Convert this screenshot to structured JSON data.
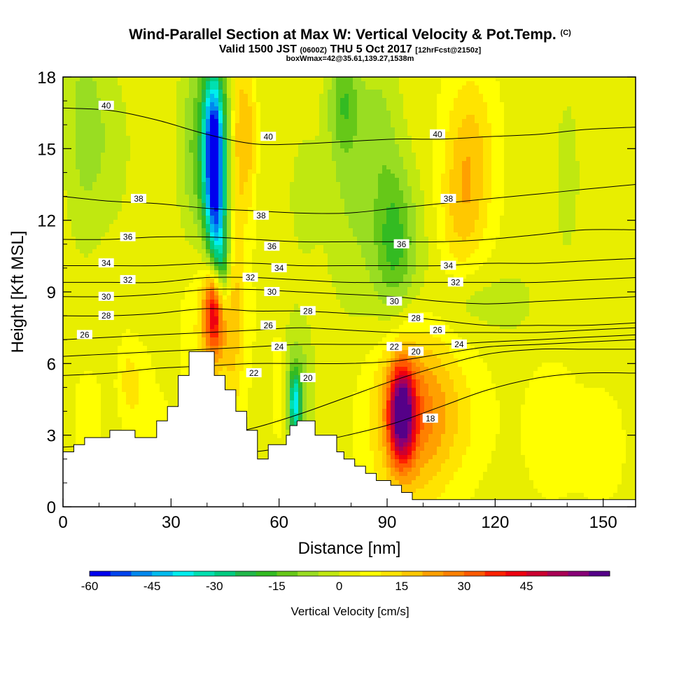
{
  "header": {
    "title_main": "Wind-Parallel Section at Max W: Vertical Velocity & Pot.Temp.",
    "title_mark": "(C)",
    "subtitle_a": "Valid 1500 JST",
    "subtitle_b": "(0600Z)",
    "subtitle_c": "THU 5 Oct 2017",
    "subtitle_d": "[12hrFcst@2150z]",
    "boxline": "boxWmax=42@35.61,139.27,1538m"
  },
  "chart_data": {
    "type": "heatmap",
    "xlabel": "Distance [nm]",
    "ylabel": "Height [Kft MSL]",
    "xlim": [
      0,
      159
    ],
    "ylim": [
      0,
      18
    ],
    "x_ticks": [
      "0",
      "30",
      "60",
      "90",
      "120",
      "150"
    ],
    "x_tick_values": [
      0,
      30,
      60,
      90,
      120,
      150
    ],
    "y_ticks": [
      "0",
      "3",
      "6",
      "9",
      "12",
      "15",
      "18"
    ],
    "y_tick_values": [
      0,
      3,
      6,
      9,
      12,
      15,
      18
    ],
    "colorbar": {
      "label": "Vertical Velocity [cm/s]",
      "tick_labels": [
        "-60",
        "-45",
        "-30",
        "-15",
        "0",
        "15",
        "30",
        "45"
      ],
      "tick_values": [
        -60,
        -45,
        -30,
        -15,
        0,
        15,
        30,
        45
      ],
      "colors": [
        "#0000ee",
        "#0044ee",
        "#0088ee",
        "#00bbee",
        "#00eeee",
        "#00e0b0",
        "#00cc80",
        "#22b84a",
        "#33bb22",
        "#66c818",
        "#99dd22",
        "#c0e810",
        "#e8ee00",
        "#ffff00",
        "#ffe400",
        "#ffc800",
        "#ffa000",
        "#ff8000",
        "#ff5a00",
        "#ff2200",
        "#ee0010",
        "#cc0030",
        "#aa0055",
        "#880077",
        "#550088"
      ]
    },
    "terrain_profile": {
      "x_nm": [
        0,
        3,
        3,
        6,
        6,
        13,
        13,
        20,
        20,
        26,
        26,
        29,
        29,
        32,
        32,
        35,
        35,
        42,
        42,
        45,
        45,
        48,
        48,
        51,
        51,
        54,
        54,
        57,
        57,
        60,
        60,
        61,
        61,
        62,
        62,
        63,
        63,
        65,
        65,
        70,
        70,
        76,
        76,
        78,
        78,
        81,
        81,
        84,
        84,
        87,
        87,
        91,
        91,
        94,
        94,
        97,
        97,
        100,
        100,
        103,
        103,
        159
      ],
      "height_kft": [
        2.3,
        2.3,
        2.6,
        2.6,
        2.9,
        2.9,
        3.2,
        3.2,
        2.9,
        2.9,
        3.6,
        3.6,
        4.2,
        4.2,
        5.5,
        5.5,
        6.5,
        6.5,
        5.5,
        5.5,
        4.9,
        4.9,
        4.0,
        4.0,
        3.2,
        3.2,
        2.0,
        2.0,
        2.6,
        2.6,
        2.6,
        2.6,
        2.6,
        2.6,
        3.0,
        3.0,
        3.4,
        3.4,
        3.6,
        3.6,
        3.0,
        3.0,
        2.3,
        2.3,
        2.0,
        2.0,
        1.7,
        1.7,
        1.4,
        1.4,
        1.1,
        1.1,
        0.9,
        0.9,
        0.6,
        0.6,
        0.3,
        0.3,
        0.3,
        0.3,
        0.3,
        0.3
      ]
    },
    "vertical_velocity_features": [
      {
        "x": 42,
        "y": 8.3,
        "sx": 2.0,
        "sy": 1.3,
        "w": 38
      },
      {
        "x": 42.5,
        "y": 8.0,
        "sx": 5.5,
        "sy": 2.8,
        "w": 14
      },
      {
        "x": 44.5,
        "y": 9.8,
        "sx": 1.5,
        "sy": 1.3,
        "w": -20
      },
      {
        "x": 42.5,
        "y": 11.8,
        "sx": 2.0,
        "sy": 2.0,
        "w": -32
      },
      {
        "x": 41.8,
        "y": 15.2,
        "sx": 2.0,
        "sy": 2.1,
        "w": -50
      },
      {
        "x": 42,
        "y": 14.5,
        "sx": 4.5,
        "sy": 4.0,
        "w": -14
      },
      {
        "x": 49,
        "y": 15.5,
        "sx": 1.6,
        "sy": 2.8,
        "w": 18
      },
      {
        "x": 52,
        "y": 15.5,
        "sx": 1.3,
        "sy": 2.2,
        "w": 12
      },
      {
        "x": 47.5,
        "y": 8.2,
        "sx": 1.8,
        "sy": 3.0,
        "w": 8
      },
      {
        "x": 94,
        "y": 3.9,
        "sx": 2.5,
        "sy": 1.4,
        "w": 50
      },
      {
        "x": 96,
        "y": 4.2,
        "sx": 7.5,
        "sy": 2.8,
        "w": 22
      },
      {
        "x": 106,
        "y": 3.8,
        "sx": 8.0,
        "sy": 2.0,
        "w": 9
      },
      {
        "x": 113,
        "y": 14.8,
        "sx": 5.0,
        "sy": 2.5,
        "w": 14
      },
      {
        "x": 110,
        "y": 12.0,
        "sx": 4.5,
        "sy": 2.0,
        "w": 9
      },
      {
        "x": 92,
        "y": 11.2,
        "sx": 3.8,
        "sy": 2.2,
        "w": -14
      },
      {
        "x": 93,
        "y": 9.6,
        "sx": 8.0,
        "sy": 3.0,
        "w": -8
      },
      {
        "x": 88,
        "y": 16.0,
        "sx": 4.0,
        "sy": 2.5,
        "w": -8
      },
      {
        "x": 78,
        "y": 17.0,
        "sx": 3.0,
        "sy": 1.6,
        "w": -14
      },
      {
        "x": 79,
        "y": 13.5,
        "sx": 5.0,
        "sy": 3.5,
        "w": -7
      },
      {
        "x": 6,
        "y": 16.0,
        "sx": 4.0,
        "sy": 3.5,
        "w": -10
      },
      {
        "x": 14,
        "y": 15.0,
        "sx": 4.0,
        "sy": 2.5,
        "w": -5
      },
      {
        "x": 36,
        "y": 15.0,
        "sx": 3.0,
        "sy": 3.0,
        "w": -8
      },
      {
        "x": 64.5,
        "y": 4.3,
        "sx": 1.2,
        "sy": 0.9,
        "w": -32
      },
      {
        "x": 65,
        "y": 5.0,
        "sx": 3.0,
        "sy": 2.0,
        "w": -12
      },
      {
        "x": 60,
        "y": 5.0,
        "sx": 1.3,
        "sy": 1.5,
        "w": 10
      },
      {
        "x": 18,
        "y": 5.3,
        "sx": 2.0,
        "sy": 1.2,
        "w": 8
      },
      {
        "x": 22,
        "y": 4.6,
        "sx": 2.5,
        "sy": 1.5,
        "w": 5
      },
      {
        "x": 26,
        "y": 3.3,
        "sx": 2.5,
        "sy": 1.0,
        "w": 5
      },
      {
        "x": 7,
        "y": 3.8,
        "sx": 3.0,
        "sy": 1.5,
        "w": 5
      },
      {
        "x": 136,
        "y": 3.2,
        "sx": 7.0,
        "sy": 2.5,
        "w": 4
      },
      {
        "x": 150,
        "y": 2.5,
        "sx": 4.0,
        "sy": 1.5,
        "w": 6
      },
      {
        "x": 140,
        "y": 13.8,
        "sx": 2.5,
        "sy": 2.5,
        "w": -6
      },
      {
        "x": 67,
        "y": 13.0,
        "sx": 3.0,
        "sy": 1.8,
        "w": -6
      },
      {
        "x": 112,
        "y": 8.6,
        "sx": 6.0,
        "sy": 1.0,
        "w": -6
      },
      {
        "x": 125,
        "y": 8.5,
        "sx": 5.0,
        "sy": 1.0,
        "w": -5
      }
    ],
    "theta_contours": [
      {
        "label": "18",
        "y": [
          2.1,
          2.1,
          2.1,
          2.2,
          2.3,
          2.6,
          3.0,
          3.5,
          4.2,
          4.9,
          5.4,
          5.6,
          5.6
        ]
      },
      {
        "label": "20",
        "y": [
          2.5,
          2.6,
          2.7,
          2.9,
          3.3,
          3.9,
          4.6,
          5.3,
          5.9,
          6.4,
          6.6,
          6.6,
          6.6
        ]
      },
      {
        "label": "22",
        "y": [
          5.5,
          5.6,
          5.8,
          5.9,
          6.0,
          6.0,
          6.0,
          6.1,
          6.4,
          6.7,
          6.8,
          6.9,
          7.0
        ]
      },
      {
        "label": "24",
        "y": [
          6.3,
          6.4,
          6.5,
          6.6,
          6.7,
          6.8,
          6.8,
          6.8,
          6.8,
          6.9,
          7.0,
          7.1,
          7.2
        ]
      },
      {
        "label": "26",
        "y": [
          7.0,
          7.1,
          7.2,
          7.3,
          7.4,
          7.5,
          7.4,
          7.3,
          7.3,
          7.3,
          7.3,
          7.4,
          7.5
        ]
      },
      {
        "label": "28",
        "y": [
          8.0,
          8.0,
          8.1,
          8.3,
          8.2,
          8.2,
          8.1,
          8.0,
          7.8,
          7.6,
          7.6,
          7.6,
          7.7
        ]
      },
      {
        "label": "30",
        "y": [
          8.8,
          8.8,
          8.9,
          9.1,
          9.1,
          9.0,
          8.9,
          8.8,
          8.6,
          8.5,
          8.6,
          8.7,
          8.8
        ]
      },
      {
        "label": "32",
        "y": [
          9.4,
          9.4,
          9.4,
          9.6,
          9.6,
          9.5,
          9.4,
          9.4,
          9.4,
          9.4,
          9.4,
          9.5,
          9.6
        ]
      },
      {
        "label": "34",
        "y": [
          10.1,
          10.1,
          10.1,
          10.2,
          10.2,
          10.1,
          10.1,
          10.1,
          10.1,
          10.2,
          10.2,
          10.3,
          10.4
        ]
      },
      {
        "label": "36",
        "y": [
          11.2,
          11.2,
          11.3,
          11.3,
          11.2,
          11.1,
          11.1,
          11.1,
          11.1,
          11.2,
          11.4,
          11.6,
          11.6
        ]
      },
      {
        "label": "38",
        "y": [
          13.0,
          12.8,
          12.7,
          12.5,
          12.4,
          12.3,
          12.3,
          12.5,
          12.7,
          12.9,
          13.1,
          13.3,
          13.5
        ]
      },
      {
        "label": "40",
        "y": [
          16.7,
          16.6,
          16.2,
          15.6,
          15.2,
          15.2,
          15.3,
          15.4,
          15.4,
          15.5,
          15.6,
          15.8,
          15.9
        ]
      }
    ],
    "theta_contour_x": [
      0,
      13,
      26,
      40,
      53,
      66,
      79,
      92,
      105,
      118,
      132,
      145,
      159
    ],
    "contour_labels": [
      {
        "text": "40",
        "x": 12,
        "y": 16.8
      },
      {
        "text": "40",
        "x": 57,
        "y": 15.5
      },
      {
        "text": "40",
        "x": 104,
        "y": 15.6
      },
      {
        "text": "38",
        "x": 21,
        "y": 12.9
      },
      {
        "text": "38",
        "x": 55,
        "y": 12.2
      },
      {
        "text": "38",
        "x": 107,
        "y": 12.9
      },
      {
        "text": "36",
        "x": 18,
        "y": 11.3
      },
      {
        "text": "36",
        "x": 58,
        "y": 10.9
      },
      {
        "text": "36",
        "x": 94,
        "y": 11.0
      },
      {
        "text": "34",
        "x": 12,
        "y": 10.2
      },
      {
        "text": "34",
        "x": 60,
        "y": 10.0
      },
      {
        "text": "34",
        "x": 107,
        "y": 10.1
      },
      {
        "text": "32",
        "x": 18,
        "y": 9.5
      },
      {
        "text": "32",
        "x": 52,
        "y": 9.6
      },
      {
        "text": "32",
        "x": 109,
        "y": 9.4
      },
      {
        "text": "30",
        "x": 12,
        "y": 8.8
      },
      {
        "text": "30",
        "x": 58,
        "y": 9.0
      },
      {
        "text": "30",
        "x": 92,
        "y": 8.6
      },
      {
        "text": "28",
        "x": 12,
        "y": 8.0
      },
      {
        "text": "28",
        "x": 68,
        "y": 8.2
      },
      {
        "text": "28",
        "x": 98,
        "y": 7.9
      },
      {
        "text": "26",
        "x": 6,
        "y": 7.2
      },
      {
        "text": "26",
        "x": 57,
        "y": 7.6
      },
      {
        "text": "26",
        "x": 104,
        "y": 7.4
      },
      {
        "text": "24",
        "x": 60,
        "y": 6.7
      },
      {
        "text": "24",
        "x": 110,
        "y": 6.8
      },
      {
        "text": "22",
        "x": 53,
        "y": 5.6
      },
      {
        "text": "22",
        "x": 92,
        "y": 6.7
      },
      {
        "text": "20",
        "x": 68,
        "y": 5.4
      },
      {
        "text": "20",
        "x": 98,
        "y": 6.5
      },
      {
        "text": "18",
        "x": 102,
        "y": 3.7
      }
    ]
  }
}
